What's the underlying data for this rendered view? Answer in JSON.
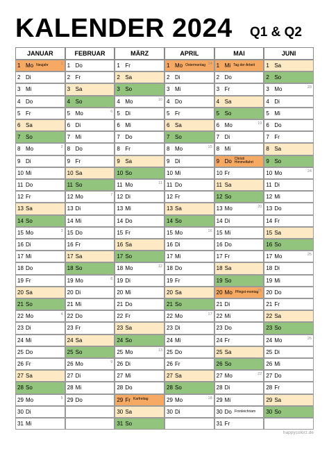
{
  "title": "KALENDER 2024",
  "subtitle": "Q1 & Q2",
  "footer": "happycolorz.de",
  "colors": {
    "sa": "#fde9c3",
    "so": "#93c47d",
    "ft": "#f6a963"
  },
  "months": [
    {
      "name": "JANUAR",
      "days": [
        {
          "d": 1,
          "w": "Mo",
          "s": "ft",
          "n": "Neujahr",
          "k": 1
        },
        {
          "d": 2,
          "w": "Di"
        },
        {
          "d": 3,
          "w": "Mi"
        },
        {
          "d": 4,
          "w": "Do"
        },
        {
          "d": 5,
          "w": "Fr"
        },
        {
          "d": 6,
          "w": "Sa",
          "s": "sa"
        },
        {
          "d": 7,
          "w": "So",
          "s": "so"
        },
        {
          "d": 8,
          "w": "Mo",
          "k": 2
        },
        {
          "d": 9,
          "w": "Di"
        },
        {
          "d": 10,
          "w": "Mi"
        },
        {
          "d": 11,
          "w": "Do"
        },
        {
          "d": 12,
          "w": "Fr"
        },
        {
          "d": 13,
          "w": "Sa",
          "s": "sa"
        },
        {
          "d": 14,
          "w": "So",
          "s": "so"
        },
        {
          "d": 15,
          "w": "Mo",
          "k": 3
        },
        {
          "d": 16,
          "w": "Di"
        },
        {
          "d": 17,
          "w": "Mi"
        },
        {
          "d": 18,
          "w": "Do"
        },
        {
          "d": 19,
          "w": "Fr"
        },
        {
          "d": 20,
          "w": "Sa",
          "s": "sa"
        },
        {
          "d": 21,
          "w": "So",
          "s": "so"
        },
        {
          "d": 22,
          "w": "Mo",
          "k": 4
        },
        {
          "d": 23,
          "w": "Di"
        },
        {
          "d": 24,
          "w": "Mi"
        },
        {
          "d": 25,
          "w": "Do"
        },
        {
          "d": 26,
          "w": "Fr"
        },
        {
          "d": 27,
          "w": "Sa",
          "s": "sa"
        },
        {
          "d": 28,
          "w": "So",
          "s": "so"
        },
        {
          "d": 29,
          "w": "Mo",
          "k": 5
        },
        {
          "d": 30,
          "w": "Di"
        },
        {
          "d": 31,
          "w": "Mi"
        }
      ]
    },
    {
      "name": "FEBRUAR",
      "days": [
        {
          "d": 1,
          "w": "Do"
        },
        {
          "d": 2,
          "w": "Fr"
        },
        {
          "d": 3,
          "w": "Sa",
          "s": "sa"
        },
        {
          "d": 4,
          "w": "So",
          "s": "so"
        },
        {
          "d": 5,
          "w": "Mo",
          "k": 6
        },
        {
          "d": 6,
          "w": "Di"
        },
        {
          "d": 7,
          "w": "Mi"
        },
        {
          "d": 8,
          "w": "Do"
        },
        {
          "d": 9,
          "w": "Fr"
        },
        {
          "d": 10,
          "w": "Sa",
          "s": "sa"
        },
        {
          "d": 11,
          "w": "So",
          "s": "so"
        },
        {
          "d": 12,
          "w": "Mo",
          "k": 7
        },
        {
          "d": 13,
          "w": "Di"
        },
        {
          "d": 14,
          "w": "Mi"
        },
        {
          "d": 15,
          "w": "Do"
        },
        {
          "d": 16,
          "w": "Fr"
        },
        {
          "d": 17,
          "w": "Sa",
          "s": "sa"
        },
        {
          "d": 18,
          "w": "So",
          "s": "so"
        },
        {
          "d": 19,
          "w": "Mo",
          "k": 8
        },
        {
          "d": 20,
          "w": "Di"
        },
        {
          "d": 21,
          "w": "Mi"
        },
        {
          "d": 22,
          "w": "Do"
        },
        {
          "d": 23,
          "w": "Fr"
        },
        {
          "d": 24,
          "w": "Sa",
          "s": "sa"
        },
        {
          "d": 25,
          "w": "So",
          "s": "so"
        },
        {
          "d": 26,
          "w": "Mo",
          "k": 9
        },
        {
          "d": 27,
          "w": "Di"
        },
        {
          "d": 28,
          "w": "Mi"
        },
        {
          "d": 29,
          "w": "Do"
        }
      ]
    },
    {
      "name": "MÄRZ",
      "days": [
        {
          "d": 1,
          "w": "Fr"
        },
        {
          "d": 2,
          "w": "Sa",
          "s": "sa"
        },
        {
          "d": 3,
          "w": "So",
          "s": "so"
        },
        {
          "d": 4,
          "w": "Mo",
          "k": 10
        },
        {
          "d": 5,
          "w": "Di"
        },
        {
          "d": 6,
          "w": "Mi"
        },
        {
          "d": 7,
          "w": "Do"
        },
        {
          "d": 8,
          "w": "Fr"
        },
        {
          "d": 9,
          "w": "Sa",
          "s": "sa"
        },
        {
          "d": 10,
          "w": "So",
          "s": "so"
        },
        {
          "d": 11,
          "w": "Mo",
          "k": 11
        },
        {
          "d": 12,
          "w": "Di"
        },
        {
          "d": 13,
          "w": "Mi"
        },
        {
          "d": 14,
          "w": "Do"
        },
        {
          "d": 15,
          "w": "Fr"
        },
        {
          "d": 16,
          "w": "Sa",
          "s": "sa"
        },
        {
          "d": 17,
          "w": "So",
          "s": "so"
        },
        {
          "d": 18,
          "w": "Mo",
          "k": 12
        },
        {
          "d": 19,
          "w": "Di"
        },
        {
          "d": 20,
          "w": "Mi"
        },
        {
          "d": 21,
          "w": "Do"
        },
        {
          "d": 22,
          "w": "Fr"
        },
        {
          "d": 23,
          "w": "Sa",
          "s": "sa"
        },
        {
          "d": 24,
          "w": "So",
          "s": "so"
        },
        {
          "d": 25,
          "w": "Mo",
          "k": 13
        },
        {
          "d": 26,
          "w": "Di"
        },
        {
          "d": 27,
          "w": "Mi"
        },
        {
          "d": 28,
          "w": "Do"
        },
        {
          "d": 29,
          "w": "Fr",
          "s": "ft",
          "n": "Karfreitag"
        },
        {
          "d": 30,
          "w": "Sa",
          "s": "sa"
        },
        {
          "d": 31,
          "w": "So",
          "s": "so"
        }
      ]
    },
    {
      "name": "APRIL",
      "days": [
        {
          "d": 1,
          "w": "Mo",
          "s": "ft",
          "n": "Ostermontag",
          "k": 14
        },
        {
          "d": 2,
          "w": "Di"
        },
        {
          "d": 3,
          "w": "Mi"
        },
        {
          "d": 4,
          "w": "Do"
        },
        {
          "d": 5,
          "w": "Fr"
        },
        {
          "d": 6,
          "w": "Sa",
          "s": "sa"
        },
        {
          "d": 7,
          "w": "So",
          "s": "so"
        },
        {
          "d": 8,
          "w": "Mo",
          "k": 15
        },
        {
          "d": 9,
          "w": "Di"
        },
        {
          "d": 10,
          "w": "Mi"
        },
        {
          "d": 11,
          "w": "Do"
        },
        {
          "d": 12,
          "w": "Fr"
        },
        {
          "d": 13,
          "w": "Sa",
          "s": "sa"
        },
        {
          "d": 14,
          "w": "So",
          "s": "so"
        },
        {
          "d": 15,
          "w": "Mo",
          "k": 16
        },
        {
          "d": 16,
          "w": "Di"
        },
        {
          "d": 17,
          "w": "Mi"
        },
        {
          "d": 18,
          "w": "Do"
        },
        {
          "d": 19,
          "w": "Fr"
        },
        {
          "d": 20,
          "w": "Sa",
          "s": "sa"
        },
        {
          "d": 21,
          "w": "So",
          "s": "so"
        },
        {
          "d": 22,
          "w": "Mo",
          "k": 17
        },
        {
          "d": 23,
          "w": "Di"
        },
        {
          "d": 24,
          "w": "Mi"
        },
        {
          "d": 25,
          "w": "Do"
        },
        {
          "d": 26,
          "w": "Fr"
        },
        {
          "d": 27,
          "w": "Sa",
          "s": "sa"
        },
        {
          "d": 28,
          "w": "So",
          "s": "so"
        },
        {
          "d": 29,
          "w": "Mo",
          "k": 18
        },
        {
          "d": 30,
          "w": "Di"
        }
      ]
    },
    {
      "name": "MAI",
      "days": [
        {
          "d": 1,
          "w": "Mi",
          "s": "ft",
          "n": "Tag der Arbeit"
        },
        {
          "d": 2,
          "w": "Do"
        },
        {
          "d": 3,
          "w": "Fr"
        },
        {
          "d": 4,
          "w": "Sa",
          "s": "sa"
        },
        {
          "d": 5,
          "w": "So",
          "s": "so"
        },
        {
          "d": 6,
          "w": "Mo",
          "k": 19
        },
        {
          "d": 7,
          "w": "Di"
        },
        {
          "d": 8,
          "w": "Mi"
        },
        {
          "d": 9,
          "w": "Do",
          "s": "ft",
          "n": "Christi Himmelfahrt"
        },
        {
          "d": 10,
          "w": "Fr"
        },
        {
          "d": 11,
          "w": "Sa",
          "s": "sa"
        },
        {
          "d": 12,
          "w": "So",
          "s": "so"
        },
        {
          "d": 13,
          "w": "Mo",
          "k": 20
        },
        {
          "d": 14,
          "w": "Di"
        },
        {
          "d": 15,
          "w": "Mi"
        },
        {
          "d": 16,
          "w": "Do"
        },
        {
          "d": 17,
          "w": "Fr"
        },
        {
          "d": 18,
          "w": "Sa",
          "s": "sa"
        },
        {
          "d": 19,
          "w": "So",
          "s": "so"
        },
        {
          "d": 20,
          "w": "Mo",
          "s": "ft",
          "n": "Pfingst-montag",
          "k": 21
        },
        {
          "d": 21,
          "w": "Di"
        },
        {
          "d": 22,
          "w": "Mi"
        },
        {
          "d": 23,
          "w": "Do"
        },
        {
          "d": 24,
          "w": "Fr"
        },
        {
          "d": 25,
          "w": "Sa",
          "s": "sa"
        },
        {
          "d": 26,
          "w": "So",
          "s": "so"
        },
        {
          "d": 27,
          "w": "Mo",
          "k": 22
        },
        {
          "d": 28,
          "w": "Di"
        },
        {
          "d": 29,
          "w": "Mi"
        },
        {
          "d": 30,
          "w": "Do",
          "n": "Fronleichnam"
        },
        {
          "d": 31,
          "w": "Fr"
        }
      ]
    },
    {
      "name": "JUNI",
      "days": [
        {
          "d": 1,
          "w": "Sa",
          "s": "sa"
        },
        {
          "d": 2,
          "w": "So",
          "s": "so"
        },
        {
          "d": 3,
          "w": "Mo",
          "k": 23
        },
        {
          "d": 4,
          "w": "Di"
        },
        {
          "d": 5,
          "w": "Mi"
        },
        {
          "d": 6,
          "w": "Do"
        },
        {
          "d": 7,
          "w": "Fr"
        },
        {
          "d": 8,
          "w": "Sa",
          "s": "sa"
        },
        {
          "d": 9,
          "w": "So",
          "s": "so"
        },
        {
          "d": 10,
          "w": "Mo",
          "k": 24
        },
        {
          "d": 11,
          "w": "Di"
        },
        {
          "d": 12,
          "w": "Mi"
        },
        {
          "d": 13,
          "w": "Do"
        },
        {
          "d": 14,
          "w": "Fr"
        },
        {
          "d": 15,
          "w": "Sa",
          "s": "sa"
        },
        {
          "d": 16,
          "w": "So",
          "s": "so"
        },
        {
          "d": 17,
          "w": "Mo",
          "k": 25
        },
        {
          "d": 18,
          "w": "Di"
        },
        {
          "d": 19,
          "w": "Mi"
        },
        {
          "d": 20,
          "w": "Do"
        },
        {
          "d": 21,
          "w": "Fr"
        },
        {
          "d": 22,
          "w": "Sa",
          "s": "sa"
        },
        {
          "d": 23,
          "w": "So",
          "s": "so"
        },
        {
          "d": 24,
          "w": "Mo",
          "k": 26
        },
        {
          "d": 25,
          "w": "Di"
        },
        {
          "d": 26,
          "w": "Mi"
        },
        {
          "d": 27,
          "w": "Do"
        },
        {
          "d": 28,
          "w": "Fr"
        },
        {
          "d": 29,
          "w": "Sa",
          "s": "sa"
        },
        {
          "d": 30,
          "w": "So",
          "s": "so"
        }
      ]
    }
  ]
}
